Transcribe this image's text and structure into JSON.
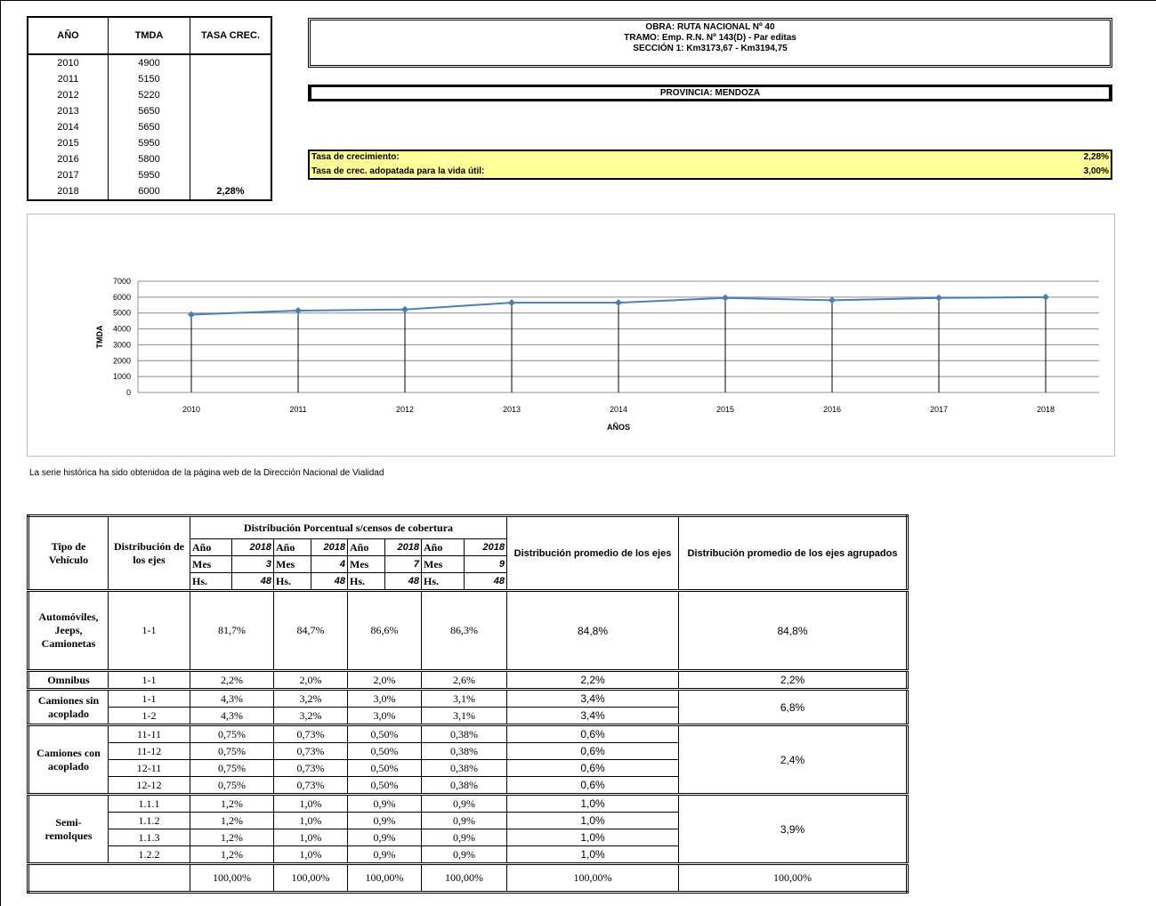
{
  "top_table": {
    "headers": [
      "AÑO",
      "TMDA",
      "TASA CREC."
    ],
    "rows": [
      [
        2010,
        4900
      ],
      [
        2011,
        5150
      ],
      [
        2012,
        5220
      ],
      [
        2013,
        5650
      ],
      [
        2014,
        5650
      ],
      [
        2015,
        5950
      ],
      [
        2016,
        5800
      ],
      [
        2017,
        5950
      ],
      [
        2018,
        6000
      ]
    ],
    "rate": "2,28%"
  },
  "obra": [
    "OBRA: RUTA NACIONAL Nº 40",
    "TRAMO: Emp. R.N. Nº 143(D) - Par editas",
    "SECCIÓN 1: Km3173,67 - Km3194,75"
  ],
  "provincia": "PROVINCIA: MENDOZA",
  "tasas": [
    {
      "label": "Tasa de crecimiento:",
      "value": "2,28%"
    },
    {
      "label": "Tasa de crec. adopatada para la vida útil:",
      "value": "3,00%"
    }
  ],
  "chart_data": {
    "type": "line",
    "categories": [
      2010,
      2011,
      2012,
      2013,
      2014,
      2015,
      2016,
      2017,
      2018
    ],
    "values": [
      4900,
      5150,
      5220,
      5650,
      5650,
      5950,
      5800,
      5950,
      6000
    ],
    "color": "#4a7ebb",
    "ylabel": "TMDA",
    "xlabel": "AÑOS",
    "ylim": [
      0,
      7000
    ],
    "yticks": [
      0,
      1000,
      2000,
      3000,
      4000,
      5000,
      6000,
      7000
    ],
    "grid": true
  },
  "note": "La serie histórica ha sido obtenidoa de la página web de la Dirección Nacional de Vialidad",
  "dist_table": {
    "headers": {
      "type": "Tipo de Vehículo",
      "axes": "Distribución de los ejes",
      "census": "Distribución Porcentual s/censos de cobertura",
      "avg": "Distribución promedio de los ejes",
      "grouped": "Distribución promedio de los ejes agrupados"
    },
    "census_labels": [
      "Año",
      "Mes",
      "Hs."
    ],
    "censuses": [
      [
        2018,
        3,
        48
      ],
      [
        2018,
        4,
        48
      ],
      [
        2018,
        7,
        48
      ],
      [
        2018,
        9,
        48
      ]
    ],
    "groups": [
      {
        "type": "Automóviles, Jeeps, Camionetas",
        "grouped": "84,8%",
        "rows": [
          {
            "axes": "1-1",
            "values": [
              "81,7%",
              "84,7%",
              "86,6%",
              "86,3%"
            ],
            "avg": "84,8%"
          }
        ]
      },
      {
        "type": "Omnibus",
        "grouped": "2,2%",
        "rows": [
          {
            "axes": "1-1",
            "values": [
              "2,2%",
              "2,0%",
              "2,0%",
              "2,6%"
            ],
            "avg": "2,2%"
          }
        ]
      },
      {
        "type": "Camiones sin acoplado",
        "grouped": "6,8%",
        "rows": [
          {
            "axes": "1-1",
            "values": [
              "4,3%",
              "3,2%",
              "3,0%",
              "3,1%"
            ],
            "avg": "3,4%"
          },
          {
            "axes": "1-2",
            "values": [
              "4,3%",
              "3,2%",
              "3,0%",
              "3,1%"
            ],
            "avg": "3,4%"
          }
        ]
      },
      {
        "type": "Camiones con acoplado",
        "grouped": "2,4%",
        "rows": [
          {
            "axes": "11-11",
            "values": [
              "0,75%",
              "0,73%",
              "0,50%",
              "0,38%"
            ],
            "avg": "0,6%"
          },
          {
            "axes": "11-12",
            "values": [
              "0,75%",
              "0,73%",
              "0,50%",
              "0,38%"
            ],
            "avg": "0,6%"
          },
          {
            "axes": "12-11",
            "values": [
              "0,75%",
              "0,73%",
              "0,50%",
              "0,38%"
            ],
            "avg": "0,6%"
          },
          {
            "axes": "12-12",
            "values": [
              "0,75%",
              "0,73%",
              "0,50%",
              "0,38%"
            ],
            "avg": "0,6%"
          }
        ]
      },
      {
        "type": "Semi- remolques",
        "grouped": "3,9%",
        "rows": [
          {
            "axes": "1.1.1",
            "values": [
              "1,2%",
              "1,0%",
              "0,9%",
              "0,9%"
            ],
            "avg": "1,0%"
          },
          {
            "axes": "1.1.2",
            "values": [
              "1,2%",
              "1,0%",
              "0,9%",
              "0,9%"
            ],
            "avg": "1,0%"
          },
          {
            "axes": "1.1.3",
            "values": [
              "1,2%",
              "1,0%",
              "0,9%",
              "0,9%"
            ],
            "avg": "1,0%"
          },
          {
            "axes": "1.2.2",
            "values": [
              "1,2%",
              "1,0%",
              "0,9%",
              "0,9%"
            ],
            "avg": "1,0%"
          }
        ]
      }
    ],
    "total": {
      "values": [
        "100,00%",
        "100,00%",
        "100,00%",
        "100,00%"
      ],
      "avg": "100,00%",
      "grouped": "100,00%"
    }
  }
}
